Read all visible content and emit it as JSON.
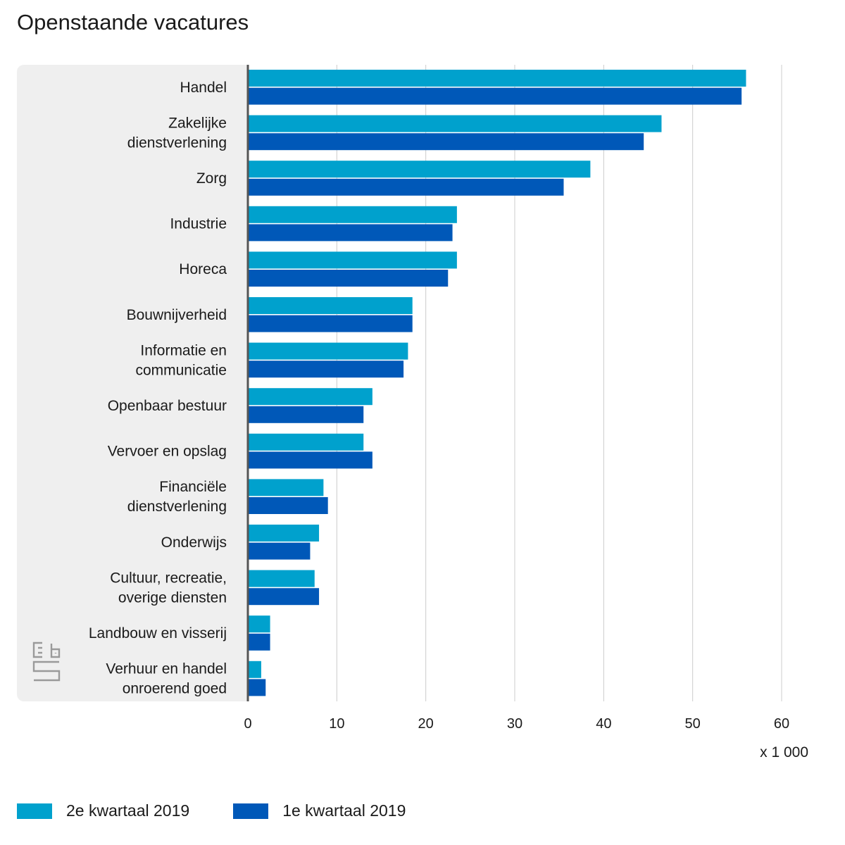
{
  "chart_data": {
    "type": "bar",
    "orientation": "horizontal",
    "title": "Openstaande vacatures",
    "unit_label": "x 1 000",
    "categories": [
      [
        "Handel"
      ],
      [
        "Zakelijke",
        "dienstverlening"
      ],
      [
        "Zorg"
      ],
      [
        "Industrie"
      ],
      [
        "Horeca"
      ],
      [
        "Bouwnijverheid"
      ],
      [
        "Informatie en",
        "communicatie"
      ],
      [
        "Openbaar bestuur"
      ],
      [
        "Vervoer en opslag"
      ],
      [
        "Financiële",
        "dienstverlening"
      ],
      [
        "Onderwijs"
      ],
      [
        "Cultuur, recreatie,",
        "overige diensten"
      ],
      [
        "Landbouw en visserij"
      ],
      [
        "Verhuur en handel",
        "onroerend goed"
      ]
    ],
    "series": [
      {
        "name": "2e kwartaal 2019",
        "color": "#00a1cd",
        "values": [
          56,
          46.5,
          38.5,
          23.5,
          23.5,
          18.5,
          18,
          14,
          13,
          8.5,
          8,
          7.5,
          2.5,
          1.5
        ]
      },
      {
        "name": "1e kwartaal 2019",
        "color": "#0058b8",
        "values": [
          55.5,
          44.5,
          35.5,
          23,
          22.5,
          18.5,
          17.5,
          13,
          14,
          9,
          7,
          8,
          2.5,
          2
        ]
      }
    ],
    "xlim": [
      0,
      60
    ],
    "xticks": [
      0,
      10,
      20,
      30,
      40,
      50,
      60
    ],
    "grid": true,
    "legend_position": "bottom-left"
  }
}
